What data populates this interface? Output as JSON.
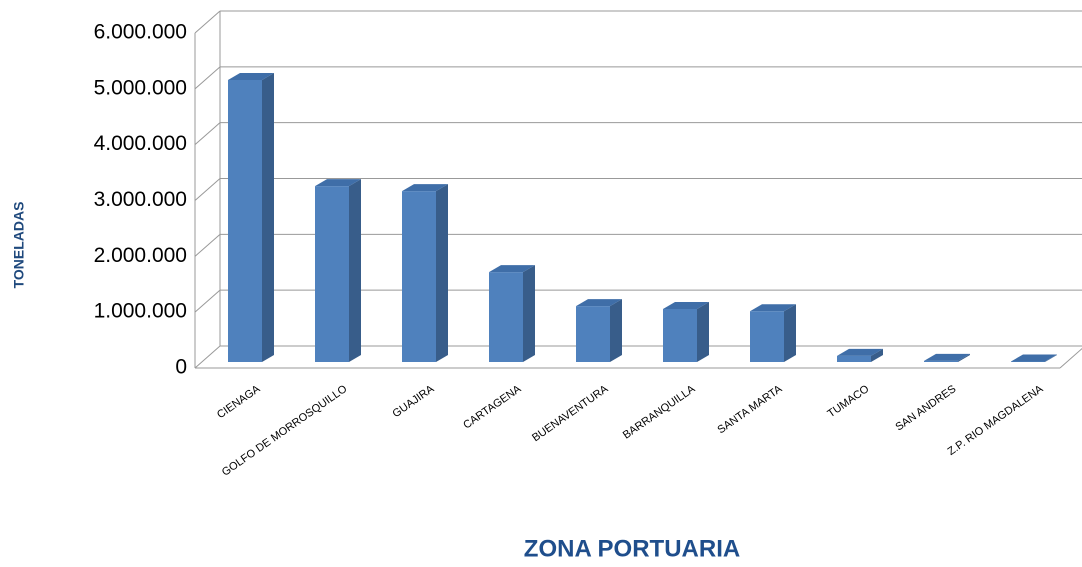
{
  "chart_data": {
    "type": "bar3d",
    "x_label": "ZONA PORTUARIA",
    "y_label": "TONELADAS",
    "categories": [
      "CIENAGA",
      "GOLFO DE MORROSQUILLO",
      "GUAJIRA",
      "CARTAGENA",
      "BUENAVENTURA",
      "BARRANQUILLA",
      "SANTA MARTA",
      "TUMACO",
      "SAN ANDRES",
      "Z.P. RIO MAGDALENA"
    ],
    "values": [
      5050000,
      3150000,
      3060000,
      1610000,
      1000000,
      950000,
      910000,
      110000,
      20000,
      10000
    ],
    "color": "#4f81bd",
    "ylim": [
      0,
      6000000
    ],
    "yticks": [
      0,
      {
        "value": 1000000,
        "label": "1.000.000"
      },
      {
        "value": 2000000,
        "label": "2.000.000"
      },
      {
        "value": 3000000,
        "label": "3.000.000"
      },
      {
        "value": 4000000,
        "label": "4.000.000"
      },
      {
        "value": 5000000,
        "label": "5.000.000"
      },
      {
        "value": 6000000,
        "label": "6.000.000"
      }
    ],
    "grid": true
  }
}
